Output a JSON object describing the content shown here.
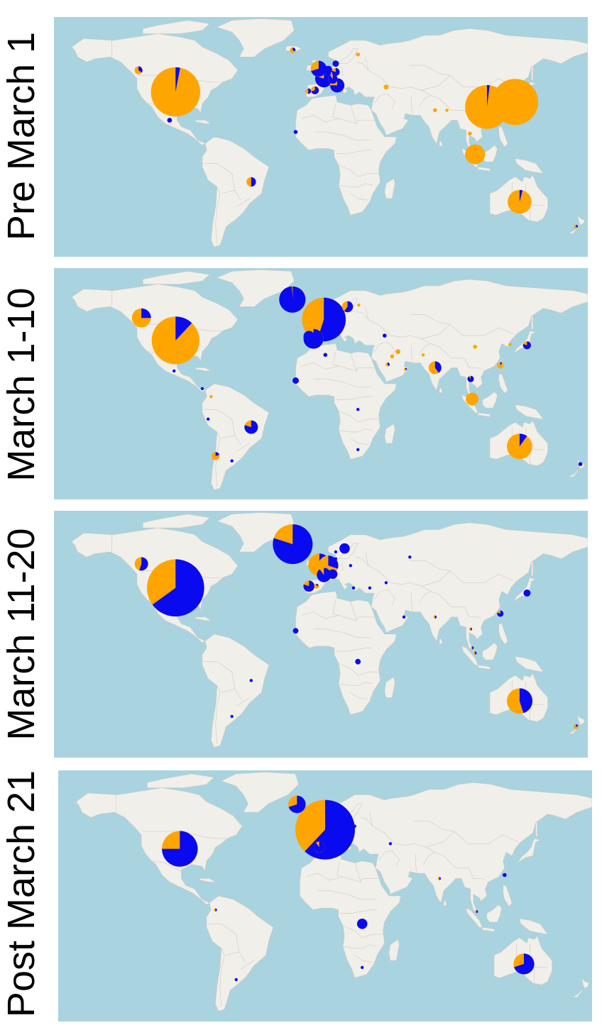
{
  "colors": {
    "ocean": "#a9d3df",
    "land": "#f1efea",
    "border": "#cfcac2",
    "orange": "#ffa500",
    "blue": "#0a0af0"
  },
  "panels": [
    {
      "label": "Pre March 1",
      "pies": [
        {
          "place": "Western Canada",
          "lon": -123,
          "lat": 52,
          "size": 0.1,
          "blue": 0.35
        },
        {
          "place": "United States",
          "lon": -98,
          "lat": 39,
          "size": 0.62,
          "blue": 0.03
        },
        {
          "place": "Mexico",
          "lon": -102,
          "lat": 22,
          "size": 0.06,
          "blue": 1.0
        },
        {
          "place": "Brazil",
          "lon": -47,
          "lat": -15,
          "size": 0.12,
          "blue": 0.5
        },
        {
          "place": "Senegal",
          "lon": -17,
          "lat": 15,
          "size": 0.05,
          "blue": 1.0
        },
        {
          "place": "Iceland",
          "lon": -19,
          "lat": 64,
          "size": 0.07,
          "blue": 0.3
        },
        {
          "place": "England",
          "lon": -1.5,
          "lat": 53,
          "size": 0.2,
          "blue": 0.7
        },
        {
          "place": "Netherlands",
          "lon": 5,
          "lat": 52.3,
          "size": 0.1,
          "blue": 1.0
        },
        {
          "place": "Germany",
          "lon": 10,
          "lat": 51,
          "size": 0.1,
          "blue": 0.8
        },
        {
          "place": "France",
          "lon": 2,
          "lat": 47,
          "size": 0.22,
          "blue": 0.8
        },
        {
          "place": "Switzerland",
          "lon": 8,
          "lat": 46.8,
          "size": 0.12,
          "blue": 0.9
        },
        {
          "place": "Italy",
          "lon": 11,
          "lat": 43,
          "size": 0.18,
          "blue": 0.75
        },
        {
          "place": "Spain",
          "lon": -4,
          "lat": 40,
          "size": 0.1,
          "blue": 0.7
        },
        {
          "place": "Portugal",
          "lon": -8.5,
          "lat": 39.5,
          "size": 0.07,
          "blue": 0.5
        },
        {
          "place": "Denmark",
          "lon": 10,
          "lat": 56,
          "size": 0.08,
          "blue": 1.0
        },
        {
          "place": "Finland",
          "lon": 25,
          "lat": 61.5,
          "size": 0.05,
          "blue": 0.0
        },
        {
          "place": "Georgia",
          "lon": 44,
          "lat": 42,
          "size": 0.06,
          "blue": 0.0
        },
        {
          "place": "India",
          "lon": 77,
          "lat": 28,
          "size": 0.05,
          "blue": 0.0
        },
        {
          "place": "Nepal",
          "lon": 85,
          "lat": 28,
          "size": 0.04,
          "blue": 0.0
        },
        {
          "place": "Thailand",
          "lon": 100.5,
          "lat": 14,
          "size": 0.05,
          "blue": 0.0
        },
        {
          "place": "China",
          "lon": 112,
          "lat": 30,
          "size": 0.55,
          "blue": 0.02
        },
        {
          "place": "East Asia",
          "lon": 131,
          "lat": 33,
          "size": 0.58,
          "blue": 0.0
        },
        {
          "place": "Singapore",
          "lon": 104,
          "lat": 1.5,
          "size": 0.25,
          "blue": 0.0
        },
        {
          "place": "Australia",
          "lon": 134,
          "lat": -27,
          "size": 0.3,
          "blue": 0.04
        },
        {
          "place": "New Zealand",
          "lon": 172,
          "lat": -42,
          "size": 0.05,
          "blue": 0.3
        }
      ]
    },
    {
      "label": "March 1-10",
      "pies": [
        {
          "place": "Western Canada",
          "lon": -121,
          "lat": 53,
          "size": 0.24,
          "blue": 0.25
        },
        {
          "place": "United States",
          "lon": -98,
          "lat": 39,
          "size": 0.6,
          "blue": 0.12
        },
        {
          "place": "Mexico",
          "lon": -99,
          "lat": 20,
          "size": 0.04,
          "blue": 1.0
        },
        {
          "place": "Panama",
          "lon": -80,
          "lat": 9,
          "size": 0.04,
          "blue": 1.0
        },
        {
          "place": "Colombia",
          "lon": -74,
          "lat": 4,
          "size": 0.04,
          "blue": 0.0
        },
        {
          "place": "Peru",
          "lon": -76,
          "lat": -10,
          "size": 0.04,
          "blue": 1.0
        },
        {
          "place": "Brazil",
          "lon": -47,
          "lat": -15,
          "size": 0.17,
          "blue": 0.8
        },
        {
          "place": "Chile",
          "lon": -71,
          "lat": -33,
          "size": 0.1,
          "blue": 0.2
        },
        {
          "place": "Argentina",
          "lon": -60,
          "lat": -36,
          "size": 0.04,
          "blue": 1.0
        },
        {
          "place": "Iceland",
          "lon": -19,
          "lat": 64.5,
          "size": 0.33,
          "blue": 0.99
        },
        {
          "place": "Northern Europe",
          "lon": 2,
          "lat": 52,
          "size": 0.55,
          "blue": 0.55
        },
        {
          "place": "Spain",
          "lon": -5,
          "lat": 40,
          "size": 0.25,
          "blue": 0.8
        },
        {
          "place": "Portugal",
          "lon": -8,
          "lat": 41.5,
          "size": 0.14,
          "blue": 1.0
        },
        {
          "place": "Sweden",
          "lon": 18,
          "lat": 60,
          "size": 0.14,
          "blue": 0.6
        },
        {
          "place": "Finland",
          "lon": 25.5,
          "lat": 61,
          "size": 0.04,
          "blue": 0.0
        },
        {
          "place": "Senegal",
          "lon": -17,
          "lat": 14,
          "size": 0.08,
          "blue": 1.0
        },
        {
          "place": "Algeria",
          "lon": 3,
          "lat": 30,
          "size": 0.05,
          "blue": 1.0
        },
        {
          "place": "Georgia",
          "lon": 43,
          "lat": 42,
          "size": 0.05,
          "blue": 1.0
        },
        {
          "place": "Iran",
          "lon": 52,
          "lat": 32,
          "size": 0.06,
          "blue": 0.0
        },
        {
          "place": "Kuwait",
          "lon": 48,
          "lat": 29,
          "size": 0.05,
          "blue": 0.0
        },
        {
          "place": "Saudi Arabia",
          "lon": 45,
          "lat": 24,
          "size": 0.05,
          "blue": 0.4
        },
        {
          "place": "Oman",
          "lon": 57,
          "lat": 21,
          "size": 0.04,
          "blue": 0.3
        },
        {
          "place": "India",
          "lon": 77,
          "lat": 22,
          "size": 0.16,
          "blue": 0.4
        },
        {
          "place": "Pakistan",
          "lon": 69,
          "lat": 30,
          "size": 0.04,
          "blue": 0.0
        },
        {
          "place": "Thailand",
          "lon": 101,
          "lat": 15,
          "size": 0.08,
          "blue": 0.9
        },
        {
          "place": "China",
          "lon": 104,
          "lat": 35,
          "size": 0.05,
          "blue": 0.0
        },
        {
          "place": "Taiwan",
          "lon": 121,
          "lat": 23.5,
          "size": 0.08,
          "blue": 0.1
        },
        {
          "place": "Japan",
          "lon": 139,
          "lat": 36,
          "size": 0.1,
          "blue": 0.8
        },
        {
          "place": "Korea",
          "lon": 127.5,
          "lat": 36.5,
          "size": 0.04,
          "blue": 0.0
        },
        {
          "place": "Malaysia",
          "lon": 102,
          "lat": 2.5,
          "size": 0.16,
          "blue": 0.0
        },
        {
          "place": "DR Congo",
          "lon": 25,
          "lat": -4,
          "size": 0.04,
          "blue": 1.0
        },
        {
          "place": "South Africa",
          "lon": 25,
          "lat": -29,
          "size": 0.04,
          "blue": 1.0
        },
        {
          "place": "Australia",
          "lon": 134,
          "lat": -27,
          "size": 0.32,
          "blue": 0.1
        },
        {
          "place": "New Zealand",
          "lon": 175,
          "lat": -38,
          "size": 0.05,
          "blue": 1.0
        }
      ]
    },
    {
      "label": "March 11-20",
      "pies": [
        {
          "place": "Western Canada",
          "lon": -121,
          "lat": 53,
          "size": 0.17,
          "blue": 0.55
        },
        {
          "place": "United States",
          "lon": -98,
          "lat": 39,
          "size": 0.72,
          "blue": 0.65
        },
        {
          "place": "Brazil",
          "lon": -47,
          "lat": -15,
          "size": 0.04,
          "blue": 1.0
        },
        {
          "place": "Argentina",
          "lon": -60,
          "lat": -36,
          "size": 0.03,
          "blue": 1.0
        },
        {
          "place": "Iceland",
          "lon": -19,
          "lat": 64.5,
          "size": 0.5,
          "blue": 0.8
        },
        {
          "place": "England",
          "lon": -1,
          "lat": 52.5,
          "size": 0.28,
          "blue": 0.4
        },
        {
          "place": "Netherlands",
          "lon": 5,
          "lat": 52,
          "size": 0.25,
          "blue": 0.3
        },
        {
          "place": "France",
          "lon": 2,
          "lat": 46.5,
          "size": 0.18,
          "blue": 0.9
        },
        {
          "place": "Switzerland",
          "lon": 8,
          "lat": 47,
          "size": 0.12,
          "blue": 1.0
        },
        {
          "place": "Portugal",
          "lon": -8,
          "lat": 40,
          "size": 0.14,
          "blue": 0.8
        },
        {
          "place": "Spain",
          "lon": -3,
          "lat": 40,
          "size": 0.06,
          "blue": 0.2
        },
        {
          "place": "Sweden",
          "lon": 16,
          "lat": 62,
          "size": 0.13,
          "blue": 1.0
        },
        {
          "place": "Norway",
          "lon": 10,
          "lat": 60,
          "size": 0.04,
          "blue": 1.0
        },
        {
          "place": "Denmark",
          "lon": 10,
          "lat": 56,
          "size": 0.04,
          "blue": 1.0
        },
        {
          "place": "Poland",
          "lon": 20,
          "lat": 52,
          "size": 0.04,
          "blue": 1.0
        },
        {
          "place": "Greece",
          "lon": 22,
          "lat": 39,
          "size": 0.03,
          "blue": 1.0
        },
        {
          "place": "Turkey",
          "lon": 33,
          "lat": 39,
          "size": 0.03,
          "blue": 1.0
        },
        {
          "place": "Georgia",
          "lon": 44,
          "lat": 42,
          "size": 0.03,
          "blue": 1.0
        },
        {
          "place": "Russia",
          "lon": 60,
          "lat": 57,
          "size": 0.04,
          "blue": 1.0
        },
        {
          "place": "Senegal",
          "lon": -17,
          "lat": 14,
          "size": 0.07,
          "blue": 1.0
        },
        {
          "place": "Oman",
          "lon": 56,
          "lat": 22,
          "size": 0.03,
          "blue": 1.0
        },
        {
          "place": "India",
          "lon": 77,
          "lat": 22,
          "size": 0.04,
          "blue": 0.5
        },
        {
          "place": "Thailand",
          "lon": 101,
          "lat": 15,
          "size": 0.03,
          "blue": 0.5
        },
        {
          "place": "Taiwan",
          "lon": 121,
          "lat": 24,
          "size": 0.08,
          "blue": 0.8
        },
        {
          "place": "Japan",
          "lon": 139,
          "lat": 36,
          "size": 0.09,
          "blue": 1.0
        },
        {
          "place": "Malaysia",
          "lon": 102,
          "lat": 4,
          "size": 0.03,
          "blue": 0.5
        },
        {
          "place": "Singapore",
          "lon": 104,
          "lat": 1,
          "size": 0.03,
          "blue": 0.5
        },
        {
          "place": "DR Congo",
          "lon": 25,
          "lat": -4,
          "size": 0.07,
          "blue": 1.0
        },
        {
          "place": "Australia",
          "lon": 134,
          "lat": -27,
          "size": 0.32,
          "blue": 0.45
        },
        {
          "place": "New Zealand",
          "lon": 172,
          "lat": -42,
          "size": 0.06,
          "blue": 0.2
        }
      ]
    },
    {
      "label": "Post March 21",
      "pies": [
        {
          "place": "Iceland",
          "lon": -19,
          "lat": 64.5,
          "size": 0.22,
          "blue": 0.7
        },
        {
          "place": "United States",
          "lon": -98,
          "lat": 39,
          "size": 0.45,
          "blue": 0.75
        },
        {
          "place": "Colombia",
          "lon": -74,
          "lat": 4,
          "size": 0.03,
          "blue": 0.5
        },
        {
          "place": "Argentina",
          "lon": -60,
          "lat": -36,
          "size": 0.03,
          "blue": 1.0
        },
        {
          "place": "Western Europe",
          "lon": 0,
          "lat": 50,
          "size": 0.75,
          "blue": 0.62
        },
        {
          "place": "Spain",
          "lon": -4,
          "lat": 40,
          "size": 0.14,
          "blue": 0.9
        },
        {
          "place": "Portugal",
          "lon": -8,
          "lat": 40.5,
          "size": 0.06,
          "blue": 1.0
        },
        {
          "place": "Italy",
          "lon": 12,
          "lat": 42,
          "size": 0.05,
          "blue": 1.0
        },
        {
          "place": "Poland",
          "lon": 20,
          "lat": 52,
          "size": 0.03,
          "blue": 1.0
        },
        {
          "place": "Georgia",
          "lon": 44,
          "lat": 42,
          "size": 0.03,
          "blue": 1.0
        },
        {
          "place": "India",
          "lon": 77,
          "lat": 22,
          "size": 0.03,
          "blue": 0.5
        },
        {
          "place": "Taiwan",
          "lon": 121,
          "lat": 24,
          "size": 0.05,
          "blue": 1.0
        },
        {
          "place": "Malaysia",
          "lon": 102,
          "lat": 3,
          "size": 0.03,
          "blue": 0.5
        },
        {
          "place": "DR Congo",
          "lon": 25,
          "lat": -4,
          "size": 0.13,
          "blue": 1.0
        },
        {
          "place": "South Africa",
          "lon": 25,
          "lat": -29,
          "size": 0.03,
          "blue": 1.0
        },
        {
          "place": "Australia",
          "lon": 134,
          "lat": -27,
          "size": 0.26,
          "blue": 0.7
        }
      ]
    }
  ]
}
